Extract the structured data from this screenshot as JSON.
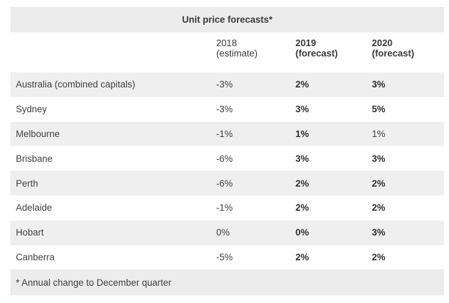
{
  "table": {
    "title": "Unit price forecasts*",
    "headers": [
      {
        "line1": "2018",
        "line2": "(estimate)",
        "bold": false
      },
      {
        "line1": "2019",
        "line2": "(forecast)",
        "bold": true
      },
      {
        "line1": "2020",
        "line2": "(forecast)",
        "bold": true
      }
    ],
    "rows": [
      {
        "city": "Australia (combined capitals)",
        "y2018": "-3%",
        "y2019": "2%",
        "y2020": "3%"
      },
      {
        "city": "Sydney",
        "y2018": "-3%",
        "y2019": "3%",
        "y2020": "5%"
      },
      {
        "city": "Melbourne",
        "y2018": "-1%",
        "y2019": "1%",
        "y2020": "1%"
      },
      {
        "city": "Brisbane",
        "y2018": "-6%",
        "y2019": "3%",
        "y2020": "3%"
      },
      {
        "city": "Perth",
        "y2018": "-6%",
        "y2019": "2%",
        "y2020": "2%"
      },
      {
        "city": "Adelaide",
        "y2018": "-1%",
        "y2019": "2%",
        "y2020": "2%"
      },
      {
        "city": "Hobart",
        "y2018": "0%",
        "y2019": "0%",
        "y2020": "3%"
      },
      {
        "city": "Canberra",
        "y2018": "-5%",
        "y2019": "2%",
        "y2020": "2%"
      }
    ],
    "footnote": "* Annual change to December quarter"
  }
}
